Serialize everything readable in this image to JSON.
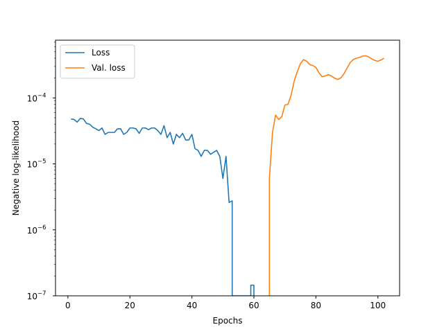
{
  "chart_data": {
    "type": "line",
    "title": "",
    "xlabel": "Epochs",
    "ylabel": "Negative log-likelihood",
    "xlim": [
      -4,
      107
    ],
    "ylim": [
      1e-07,
      0.00075
    ],
    "yscale": "log",
    "grid": false,
    "legend_position": "top-left",
    "x_ticks": [
      {
        "value": 0,
        "label": "0"
      },
      {
        "value": 20,
        "label": "20"
      },
      {
        "value": 40,
        "label": "40"
      },
      {
        "value": 60,
        "label": "60"
      },
      {
        "value": 80,
        "label": "80"
      },
      {
        "value": 100,
        "label": "100"
      }
    ],
    "y_ticks": [
      {
        "value": 1e-07,
        "base": "10",
        "exp": "−7"
      },
      {
        "value": 1e-06,
        "base": "10",
        "exp": "−6"
      },
      {
        "value": 1e-05,
        "base": "10",
        "exp": "−5"
      },
      {
        "value": 0.0001,
        "base": "10",
        "exp": "−4"
      }
    ],
    "series": [
      {
        "name": "Loss",
        "color": "#1f77b4",
        "points": [
          [
            1,
            4.8e-05
          ],
          [
            2,
            4.7e-05
          ],
          [
            3,
            4.3e-05
          ],
          [
            4,
            4.9e-05
          ],
          [
            5,
            4.8e-05
          ],
          [
            6,
            4.1e-05
          ],
          [
            7,
            4e-05
          ],
          [
            8,
            3.6e-05
          ],
          [
            9,
            3.4e-05
          ],
          [
            10,
            3.2e-05
          ],
          [
            11,
            3.5e-05
          ],
          [
            12,
            2.8e-05
          ],
          [
            13,
            3e-05
          ],
          [
            14,
            3e-05
          ],
          [
            15,
            3e-05
          ],
          [
            16,
            3.4e-05
          ],
          [
            17,
            3.4e-05
          ],
          [
            18,
            2.8e-05
          ],
          [
            19,
            3e-05
          ],
          [
            20,
            3.5e-05
          ],
          [
            21,
            3.5e-05
          ],
          [
            22,
            3.4e-05
          ],
          [
            23,
            2.9e-05
          ],
          [
            24,
            3.5e-05
          ],
          [
            25,
            3.5e-05
          ],
          [
            26,
            3.3e-05
          ],
          [
            27,
            3.5e-05
          ],
          [
            28,
            3.5e-05
          ],
          [
            29,
            3.2e-05
          ],
          [
            30,
            2.8e-05
          ],
          [
            31,
            3.8e-05
          ],
          [
            32,
            2.5e-05
          ],
          [
            33,
            3e-05
          ],
          [
            34,
            2e-05
          ],
          [
            35,
            2.8e-05
          ],
          [
            36,
            2.5e-05
          ],
          [
            37,
            2.9e-05
          ],
          [
            38,
            2.3e-05
          ],
          [
            39,
            2.3e-05
          ],
          [
            40,
            2.8e-05
          ],
          [
            41,
            1.7e-05
          ],
          [
            42,
            1.6e-05
          ],
          [
            43,
            1.3e-05
          ],
          [
            44,
            1.6e-05
          ],
          [
            45,
            1.6e-05
          ],
          [
            46,
            1.4e-05
          ],
          [
            47,
            1.5e-05
          ],
          [
            48,
            1.6e-05
          ],
          [
            49,
            1.3e-05
          ],
          [
            50,
            6e-06
          ],
          [
            51,
            1.3e-05
          ],
          [
            52,
            2.6e-06
          ],
          [
            53,
            2.75e-06
          ],
          [
            53,
            1e-07
          ],
          [
            59,
            1e-07
          ],
          [
            59,
            1.45e-07
          ],
          [
            60,
            1.45e-07
          ],
          [
            60,
            1e-07
          ]
        ]
      },
      {
        "name": "Val. loss",
        "color": "#ff7f0e",
        "points": [
          [
            65,
            1e-07
          ],
          [
            65,
            6e-06
          ],
          [
            66,
            3e-05
          ],
          [
            67,
            5.5e-05
          ],
          [
            68,
            4.7e-05
          ],
          [
            69,
            5.2e-05
          ],
          [
            70,
            7.8e-05
          ],
          [
            71,
            8e-05
          ],
          [
            72,
            0.00011
          ],
          [
            73,
            0.00018
          ],
          [
            74,
            0.00025
          ],
          [
            75,
            0.00033
          ],
          [
            76,
            0.00038
          ],
          [
            77,
            0.00036
          ],
          [
            78,
            0.00032
          ],
          [
            79,
            0.00031
          ],
          [
            80,
            0.00029
          ],
          [
            81,
            0.00024
          ],
          [
            82,
            0.00021
          ],
          [
            83,
            0.000215
          ],
          [
            84,
            0.000225
          ],
          [
            85,
            0.000215
          ],
          [
            86,
            0.0002
          ],
          [
            87,
            0.00019
          ],
          [
            88,
            0.0002
          ],
          [
            89,
            0.00023
          ],
          [
            90,
            0.00028
          ],
          [
            91,
            0.00034
          ],
          [
            92,
            0.00038
          ],
          [
            93,
            0.0004
          ],
          [
            94,
            0.00041
          ],
          [
            95,
            0.00043
          ],
          [
            96,
            0.000435
          ],
          [
            97,
            0.00042
          ],
          [
            98,
            0.00039
          ],
          [
            99,
            0.00037
          ],
          [
            100,
            0.00036
          ],
          [
            101,
            0.000375
          ],
          [
            102,
            0.0004
          ]
        ]
      }
    ]
  }
}
